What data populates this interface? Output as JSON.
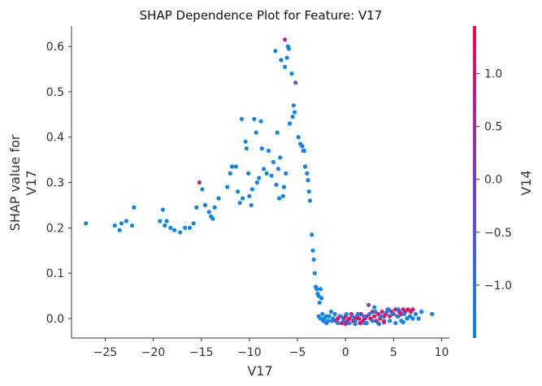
{
  "chart_data": {
    "type": "scatter",
    "title": "SHAP Dependence Plot for Feature: V17",
    "xlabel": "V17",
    "ylabel_lines": [
      "SHAP value for",
      "V17"
    ],
    "xlim": [
      -28.5,
      10.8
    ],
    "ylim": [
      -0.043,
      0.645
    ],
    "x_ticks": [
      -25,
      -20,
      -15,
      -10,
      -5,
      0,
      5,
      10
    ],
    "x_tick_labels": [
      "−25",
      "−20",
      "−15",
      "−10",
      "−5",
      "0",
      "5",
      "10"
    ],
    "y_ticks": [
      0.0,
      0.1,
      0.2,
      0.3,
      0.4,
      0.5,
      0.6
    ],
    "y_tick_labels": [
      "0.0",
      "0.1",
      "0.2",
      "0.3",
      "0.4",
      "0.5",
      "0.6"
    ],
    "colorbar": {
      "label": "V14",
      "min": -1.5,
      "max": 1.45,
      "ticks": [
        1.0,
        0.5,
        0.0,
        -0.5,
        -1.0
      ],
      "tick_labels": [
        "1.0",
        "0.5",
        "0.0",
        "−0.5",
        "−1.0"
      ],
      "color_low": "#008afb",
      "color_high": "#ff0051"
    },
    "grid": false,
    "points": [
      [
        -27.0,
        0.21,
        -1.4
      ],
      [
        -24.0,
        0.205,
        -1.4
      ],
      [
        -23.5,
        0.195,
        -1.4
      ],
      [
        -23.3,
        0.21,
        -1.4
      ],
      [
        -22.8,
        0.215,
        -1.4
      ],
      [
        -22.2,
        0.205,
        -1.4
      ],
      [
        -22.0,
        0.245,
        -1.4
      ],
      [
        -19.3,
        0.215,
        -1.4
      ],
      [
        -19.0,
        0.24,
        -1.4
      ],
      [
        -18.8,
        0.205,
        -1.4
      ],
      [
        -18.6,
        0.215,
        -1.4
      ],
      [
        -18.2,
        0.2,
        -1.4
      ],
      [
        -17.8,
        0.195,
        -1.4
      ],
      [
        -17.2,
        0.19,
        -1.4
      ],
      [
        -16.7,
        0.2,
        -1.4
      ],
      [
        -16.2,
        0.2,
        -1.4
      ],
      [
        -15.8,
        0.21,
        -1.4
      ],
      [
        -15.5,
        0.245,
        -1.4
      ],
      [
        -15.2,
        0.3,
        0.3
      ],
      [
        -14.9,
        0.285,
        -1.4
      ],
      [
        -14.6,
        0.25,
        -1.4
      ],
      [
        -14.2,
        0.235,
        -1.4
      ],
      [
        -14.0,
        0.225,
        -1.4
      ],
      [
        -13.8,
        0.22,
        -1.4
      ],
      [
        -13.6,
        0.245,
        -1.4
      ],
      [
        -13.2,
        0.265,
        -1.4
      ],
      [
        -12.3,
        0.29,
        -1.4
      ],
      [
        -12.0,
        0.32,
        -1.4
      ],
      [
        -11.8,
        0.335,
        -1.4
      ],
      [
        -11.4,
        0.335,
        -1.4
      ],
      [
        -11.2,
        0.28,
        -1.4
      ],
      [
        -11.0,
        0.255,
        -1.4
      ],
      [
        -10.8,
        0.44,
        -1.4
      ],
      [
        -10.7,
        0.265,
        -1.4
      ],
      [
        -10.4,
        0.39,
        -1.4
      ],
      [
        -10.3,
        0.375,
        -1.4
      ],
      [
        -10.1,
        0.32,
        -1.4
      ],
      [
        -10.0,
        0.27,
        -1.4
      ],
      [
        -9.8,
        0.25,
        -1.4
      ],
      [
        -9.7,
        0.285,
        -1.4
      ],
      [
        -9.5,
        0.44,
        -1.4
      ],
      [
        -9.3,
        0.41,
        -1.4
      ],
      [
        -9.2,
        0.3,
        -1.4
      ],
      [
        -9.0,
        0.31,
        -1.4
      ],
      [
        -8.8,
        0.435,
        -1.4
      ],
      [
        -8.7,
        0.375,
        -1.4
      ],
      [
        -8.5,
        0.33,
        -1.4
      ],
      [
        -8.2,
        0.32,
        -1.4
      ],
      [
        -8.0,
        0.37,
        -1.4
      ],
      [
        -7.7,
        0.315,
        -1.4
      ],
      [
        -7.5,
        0.345,
        -1.4
      ],
      [
        -7.3,
        0.59,
        -1.4
      ],
      [
        -7.2,
        0.295,
        -1.4
      ],
      [
        -7.1,
        0.41,
        -1.4
      ],
      [
        -7.0,
        0.33,
        -1.4
      ],
      [
        -6.9,
        0.265,
        -1.4
      ],
      [
        -6.8,
        0.355,
        -1.4
      ],
      [
        -6.7,
        0.57,
        -1.4
      ],
      [
        -6.5,
        0.27,
        -1.4
      ],
      [
        -6.4,
        0.29,
        -1.4
      ],
      [
        -6.3,
        0.555,
        -1.4
      ],
      [
        -6.3,
        0.615,
        0.2
      ],
      [
        -6.2,
        0.32,
        -1.4
      ],
      [
        -6.1,
        0.575,
        -1.4
      ],
      [
        -6.0,
        0.6,
        -1.4
      ],
      [
        -5.9,
        0.595,
        -1.4
      ],
      [
        -5.8,
        0.43,
        -1.4
      ],
      [
        -5.6,
        0.54,
        -1.4
      ],
      [
        -5.5,
        0.445,
        -1.4
      ],
      [
        -5.4,
        0.47,
        -1.4
      ],
      [
        -5.3,
        0.455,
        -1.4
      ],
      [
        -5.2,
        0.52,
        -0.6
      ],
      [
        -4.9,
        0.4,
        -1.4
      ],
      [
        -4.7,
        0.385,
        -1.4
      ],
      [
        -4.5,
        0.38,
        -1.4
      ],
      [
        -4.4,
        0.37,
        -1.4
      ],
      [
        -4.3,
        0.37,
        -1.4
      ],
      [
        -4.2,
        0.335,
        -1.4
      ],
      [
        -4.0,
        0.32,
        -1.4
      ],
      [
        -3.9,
        0.305,
        -1.4
      ],
      [
        -3.8,
        0.28,
        -1.4
      ],
      [
        -3.7,
        0.26,
        -1.4
      ],
      [
        -3.5,
        0.185,
        -1.4
      ],
      [
        -3.4,
        0.15,
        -1.4
      ],
      [
        -3.3,
        0.13,
        -1.4
      ],
      [
        -3.2,
        0.1,
        -1.4
      ],
      [
        -3.1,
        0.07,
        -1.4
      ],
      [
        -3.0,
        0.065,
        -1.4
      ],
      [
        -2.9,
        0.055,
        -1.4
      ],
      [
        -2.8,
        0.05,
        -1.4
      ],
      [
        -2.7,
        0.035,
        -1.4
      ],
      [
        -2.6,
        0.065,
        -1.4
      ],
      [
        -2.5,
        0.045,
        -1.4
      ],
      [
        -2.8,
        0.005,
        -1.4
      ],
      [
        -2.6,
        0.0,
        -1.4
      ],
      [
        -2.4,
        0.01,
        -1.4
      ],
      [
        -2.2,
        0.0,
        -1.4
      ],
      [
        -2.0,
        0.005,
        -1.4
      ],
      [
        -1.8,
        -0.005,
        -1.4
      ],
      [
        -1.5,
        0.015,
        -1.4
      ],
      [
        -1.3,
        0.0,
        -1.4
      ],
      [
        -1.0,
        -0.005,
        0.5
      ],
      [
        -0.8,
        0.0,
        1.0
      ],
      [
        -0.6,
        0.005,
        1.1
      ],
      [
        -0.4,
        -0.01,
        1.2
      ],
      [
        -0.2,
        0.0,
        0.7
      ],
      [
        0.0,
        0.005,
        1.2
      ],
      [
        0.2,
        -0.005,
        1.0
      ],
      [
        0.4,
        0.0,
        1.3
      ],
      [
        0.6,
        0.01,
        0.8
      ],
      [
        0.8,
        -0.005,
        1.1
      ],
      [
        1.0,
        0.0,
        1.2
      ],
      [
        1.2,
        0.005,
        0.6
      ],
      [
        1.4,
        0.0,
        1.2
      ],
      [
        1.6,
        0.01,
        1.0
      ],
      [
        1.8,
        -0.005,
        1.1
      ],
      [
        2.0,
        0.0,
        1.2
      ],
      [
        2.2,
        0.005,
        0.9
      ],
      [
        2.4,
        0.03,
        -0.3
      ],
      [
        2.6,
        0.0,
        1.2
      ],
      [
        2.8,
        0.015,
        1.0
      ],
      [
        3.0,
        0.005,
        1.1
      ],
      [
        3.2,
        -0.005,
        0.8
      ],
      [
        3.4,
        0.01,
        1.2
      ],
      [
        3.6,
        0.0,
        1.1
      ],
      [
        3.8,
        0.015,
        0.9
      ],
      [
        4.0,
        0.005,
        1.2
      ],
      [
        4.2,
        0.01,
        1.0
      ],
      [
        4.4,
        0.02,
        1.1
      ],
      [
        4.6,
        0.005,
        0.8
      ],
      [
        4.8,
        0.015,
        1.2
      ],
      [
        5.0,
        0.01,
        1.1
      ],
      [
        5.2,
        0.02,
        1.0
      ],
      [
        5.4,
        0.005,
        1.2
      ],
      [
        5.6,
        0.015,
        0.9
      ],
      [
        5.8,
        0.01,
        1.1
      ],
      [
        6.0,
        0.02,
        1.2
      ],
      [
        6.2,
        0.015,
        1.0
      ],
      [
        6.5,
        0.02,
        1.1
      ],
      [
        6.8,
        0.015,
        1.2
      ],
      [
        7.0,
        0.02,
        0.9
      ],
      [
        -2.3,
        -0.005,
        -1.3
      ],
      [
        -2.0,
        -0.01,
        -1.4
      ],
      [
        -1.7,
        0.005,
        -1.4
      ],
      [
        -1.4,
        -0.005,
        -1.4
      ],
      [
        -1.1,
        0.01,
        -1.4
      ],
      [
        -0.8,
        -0.01,
        -1.4
      ],
      [
        -0.5,
        0.005,
        -1.4
      ],
      [
        -0.2,
        -0.005,
        -1.4
      ],
      [
        0.1,
        0.01,
        -1.4
      ],
      [
        0.4,
        -0.01,
        -1.4
      ],
      [
        0.7,
        0.005,
        -1.4
      ],
      [
        1.0,
        -0.005,
        -1.4
      ],
      [
        1.3,
        0.01,
        -1.4
      ],
      [
        1.6,
        -0.01,
        -1.4
      ],
      [
        1.9,
        0.005,
        -1.4
      ],
      [
        2.2,
        -0.01,
        -1.4
      ],
      [
        2.5,
        0.01,
        -1.4
      ],
      [
        2.8,
        -0.005,
        -1.4
      ],
      [
        3.1,
        0.015,
        -1.4
      ],
      [
        3.4,
        -0.01,
        -1.4
      ],
      [
        3.7,
        0.005,
        -1.4
      ],
      [
        4.0,
        -0.005,
        -1.4
      ],
      [
        4.3,
        0.015,
        -1.4
      ],
      [
        4.6,
        -0.005,
        -1.4
      ],
      [
        4.9,
        0.01,
        -1.4
      ],
      [
        5.2,
        -0.01,
        -1.4
      ],
      [
        5.5,
        0.005,
        -1.4
      ],
      [
        5.8,
        -0.005,
        -1.4
      ],
      [
        6.1,
        0.01,
        -1.4
      ],
      [
        6.4,
        0.0,
        -1.4
      ],
      [
        6.7,
        0.005,
        -1.4
      ],
      [
        7.0,
        0.0,
        -1.4
      ],
      [
        7.3,
        0.01,
        -1.4
      ],
      [
        7.6,
        0.0,
        -1.4
      ],
      [
        7.9,
        0.015,
        -1.4
      ],
      [
        9.0,
        0.01,
        -1.4
      ],
      [
        3.0,
        0.025,
        -1.4
      ],
      [
        4.5,
        0.02,
        -1.4
      ],
      [
        5.5,
        0.02,
        -1.4
      ],
      [
        2.0,
        -0.01,
        -1.4
      ],
      [
        1.0,
        -0.012,
        -1.4
      ],
      [
        3.5,
        -0.012,
        -1.4
      ],
      [
        6.0,
        -0.008,
        -1.4
      ],
      [
        0.0,
        -0.012,
        0.9
      ],
      [
        1.5,
        -0.01,
        1.1
      ],
      [
        4.0,
        -0.008,
        1.0
      ]
    ]
  }
}
